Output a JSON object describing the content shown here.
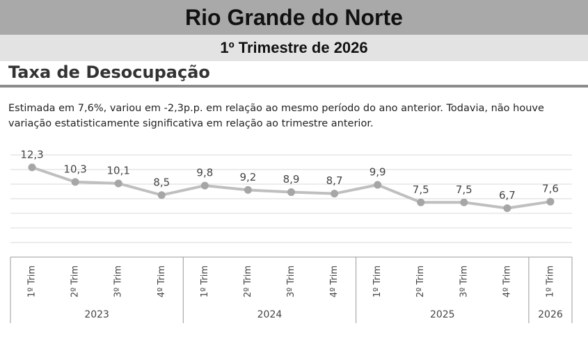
{
  "header": {
    "title": "Rio Grande do Norte",
    "subtitle": "1º Trimestre de 2026"
  },
  "chart_data": {
    "type": "line",
    "title": "Taxa de Desocupação",
    "description": "Estimada em 7,6%, variou em -2,3p.p. em relação ao mesmo período do ano anterior. Todavia, não houve variação estatisticamente significativa em relação ao trimestre anterior.",
    "categories": [
      "1º Trim",
      "2º Trim",
      "3º Trim",
      "4º Trim",
      "1º Trim",
      "2º Trim",
      "3º Trim",
      "4º Trim",
      "1º Trim",
      "2º Trim",
      "3º Trim",
      "4º Trim",
      "1º Trim"
    ],
    "groups": [
      {
        "label": "2023",
        "span": 4
      },
      {
        "label": "2024",
        "span": 4
      },
      {
        "label": "2025",
        "span": 4
      },
      {
        "label": "2026",
        "span": 1
      }
    ],
    "values": [
      12.3,
      10.3,
      10.1,
      8.5,
      9.8,
      9.2,
      8.9,
      8.7,
      9.9,
      7.5,
      7.5,
      6.7,
      7.6
    ],
    "value_labels": [
      "12,3",
      "10,3",
      "10,1",
      "8,5",
      "9,8",
      "9,2",
      "8,9",
      "8,7",
      "9,9",
      "7,5",
      "7,5",
      "6,7",
      "7,6"
    ],
    "color": "#bfbfbf",
    "marker_color": "#a6a6a6",
    "ylim": [
      0,
      14
    ],
    "yticks": [
      0,
      2,
      4,
      6,
      8,
      10,
      12,
      14
    ],
    "grid": true
  }
}
